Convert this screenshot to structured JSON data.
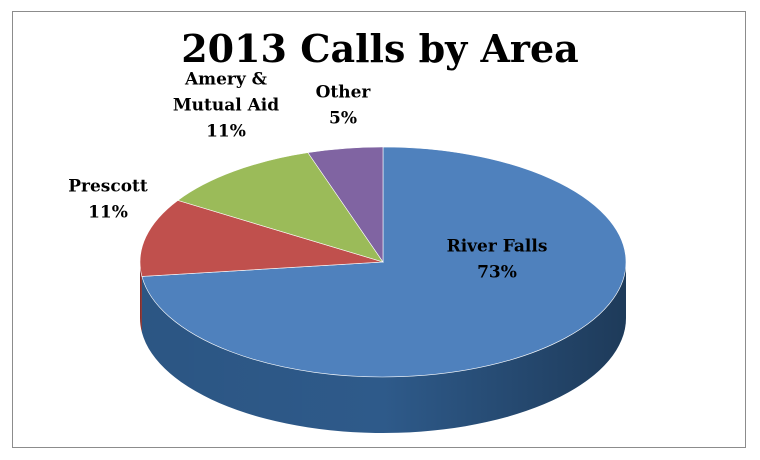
{
  "chart_data": {
    "type": "pie",
    "title": "2013 Calls by Area",
    "slices": [
      {
        "label": "River Falls",
        "label_lines": [
          "River Falls"
        ],
        "pct_text": "73%",
        "value": 73,
        "color": "#4F81BD",
        "side": "#2E5A8A"
      },
      {
        "label": "Prescott",
        "label_lines": [
          "Prescott"
        ],
        "pct_text": "11%",
        "value": 11,
        "color": "#C0504D",
        "side": "#8B3130"
      },
      {
        "label": "Amery & Mutual Aid",
        "label_lines": [
          "Amery &",
          "Mutual Aid"
        ],
        "pct_text": "11%",
        "value": 11,
        "color": "#9BBB59",
        "side": "#6F8A3A"
      },
      {
        "label": "Other",
        "label_lines": [
          "Other"
        ],
        "pct_text": "5%",
        "value": 5,
        "color": "#8064A2",
        "side": "#5A4375"
      }
    ],
    "style": "3d-pie",
    "legend": "none"
  }
}
